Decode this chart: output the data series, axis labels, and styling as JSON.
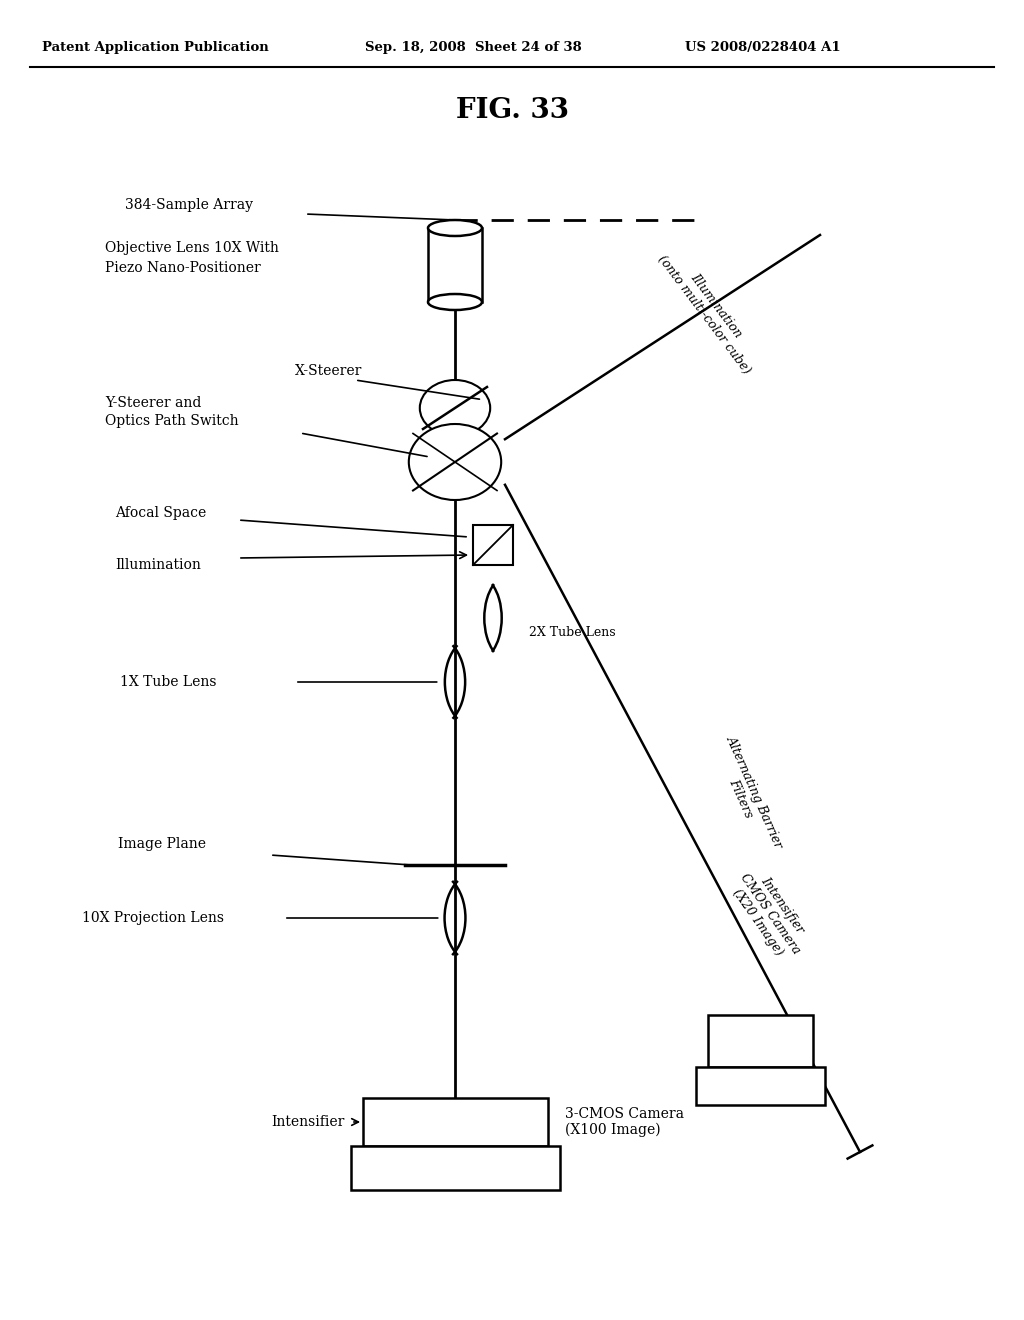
{
  "bg_color": "#ffffff",
  "header_left": "Patent Application Publication",
  "header_center": "Sep. 18, 2008  Sheet 24 of 38",
  "header_right": "US 2008/0228404 A1",
  "title": "FIG. 33"
}
